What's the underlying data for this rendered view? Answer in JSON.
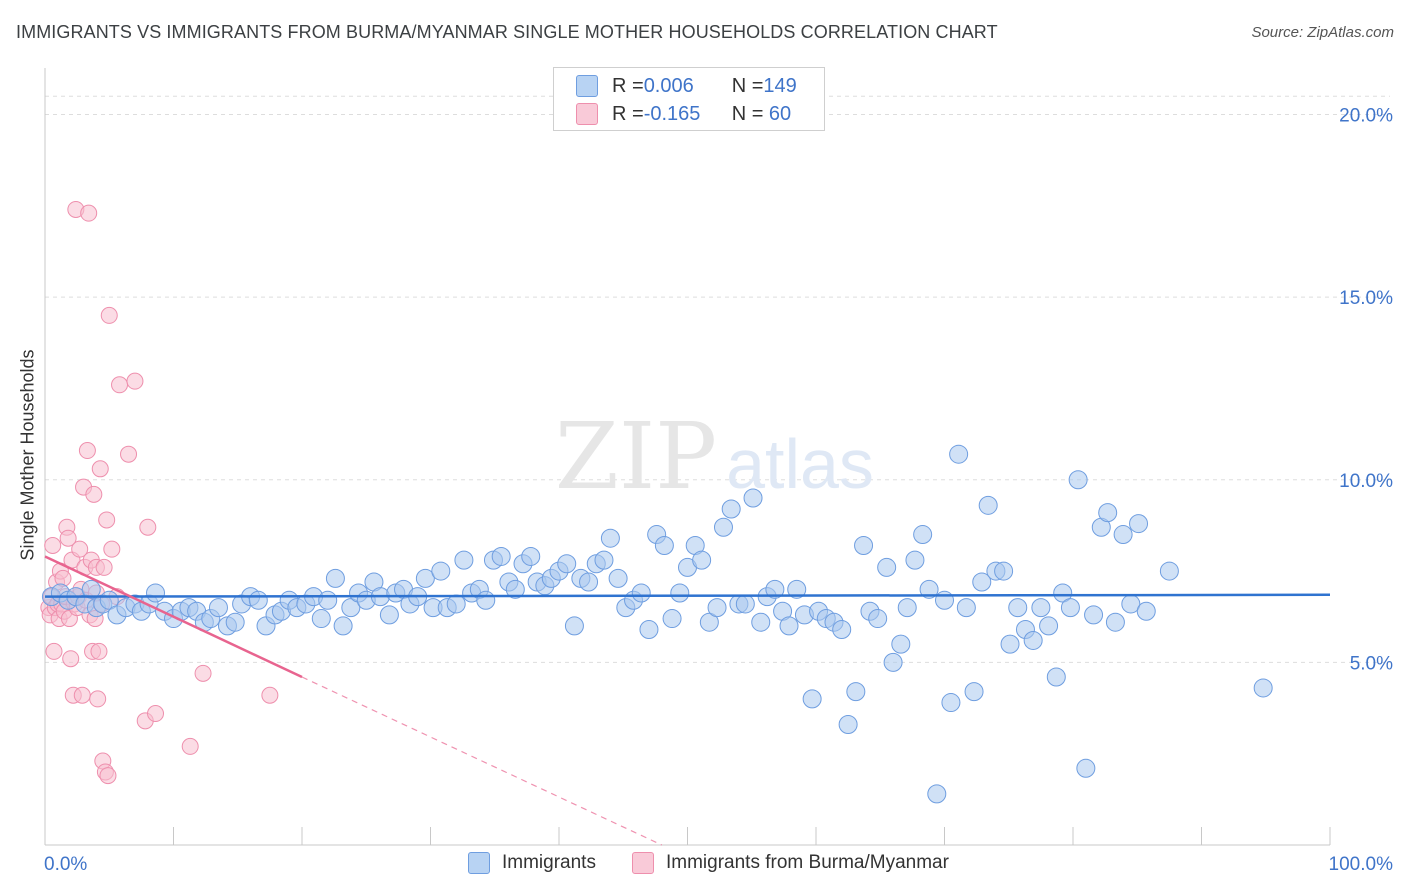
{
  "title": "IMMIGRANTS VS IMMIGRANTS FROM BURMA/MYANMAR SINGLE MOTHER HOUSEHOLDS CORRELATION CHART",
  "source": "Source: ZipAtlas.com",
  "watermark": {
    "zip": "ZIP",
    "atlas": "atlas"
  },
  "legend": {
    "rows": [
      {
        "r_label": "R = ",
        "r_value": "0.006",
        "n_label": "N = ",
        "n_value": "149"
      },
      {
        "r_label": "R = ",
        "r_value": "-0.165",
        "n_label": "N = ",
        "n_value": " 60"
      }
    ]
  },
  "bottom_legend": [
    "Immigrants",
    "Immigrants from Burma/Myanmar"
  ],
  "colors": {
    "blue_fill": "#a9c8ef",
    "blue_stroke": "#6f9ee0",
    "blue_line": "#2f73d0",
    "pink_fill": "#f7bfd0",
    "pink_stroke": "#ee8fad",
    "pink_line": "#e8648f",
    "tick_blue": "#3f74c9",
    "grid": "#dddddd"
  },
  "chart_data": {
    "type": "scatter",
    "title": "IMMIGRANTS VS IMMIGRANTS FROM BURMA/MYANMAR SINGLE MOTHER HOUSEHOLDS CORRELATION CHART",
    "xlabel": "",
    "ylabel": "Single Mother Households",
    "xlim": [
      0,
      100
    ],
    "ylim": [
      0,
      21
    ],
    "x_tick_labels": [
      "0.0%",
      "100.0%"
    ],
    "y_ticks": [
      5,
      10,
      15,
      20
    ],
    "y_tick_labels": [
      "5.0%",
      "10.0%",
      "15.0%",
      "20.0%"
    ],
    "series": [
      {
        "name": "Immigrants",
        "r": 0.006,
        "n": 149,
        "trend": {
          "x0": 0,
          "y0": 6.8,
          "x1": 100,
          "y1": 6.85
        },
        "points": [
          [
            0.5,
            6.8
          ],
          [
            1.2,
            6.9
          ],
          [
            1.8,
            6.7
          ],
          [
            2.4,
            6.8
          ],
          [
            3.1,
            6.6
          ],
          [
            3.6,
            7.0
          ],
          [
            4.0,
            6.5
          ],
          [
            4.5,
            6.6
          ],
          [
            5.0,
            6.7
          ],
          [
            5.6,
            6.3
          ],
          [
            6.3,
            6.5
          ],
          [
            7.0,
            6.6
          ],
          [
            7.5,
            6.4
          ],
          [
            8.1,
            6.6
          ],
          [
            8.6,
            6.9
          ],
          [
            9.3,
            6.4
          ],
          [
            10.0,
            6.2
          ],
          [
            10.6,
            6.4
          ],
          [
            11.2,
            6.5
          ],
          [
            11.8,
            6.4
          ],
          [
            12.4,
            6.1
          ],
          [
            12.9,
            6.2
          ],
          [
            13.5,
            6.5
          ],
          [
            14.2,
            6.0
          ],
          [
            14.8,
            6.1
          ],
          [
            15.3,
            6.6
          ],
          [
            16.0,
            6.8
          ],
          [
            16.6,
            6.7
          ],
          [
            17.2,
            6.0
          ],
          [
            17.9,
            6.3
          ],
          [
            18.4,
            6.4
          ],
          [
            19.0,
            6.7
          ],
          [
            19.6,
            6.5
          ],
          [
            20.3,
            6.6
          ],
          [
            20.9,
            6.8
          ],
          [
            21.5,
            6.2
          ],
          [
            22.0,
            6.7
          ],
          [
            22.6,
            7.3
          ],
          [
            23.2,
            6.0
          ],
          [
            23.8,
            6.5
          ],
          [
            24.4,
            6.9
          ],
          [
            25.0,
            6.7
          ],
          [
            25.6,
            7.2
          ],
          [
            26.1,
            6.8
          ],
          [
            26.8,
            6.3
          ],
          [
            27.3,
            6.9
          ],
          [
            27.9,
            7.0
          ],
          [
            28.4,
            6.6
          ],
          [
            29.0,
            6.8
          ],
          [
            29.6,
            7.3
          ],
          [
            30.2,
            6.5
          ],
          [
            30.8,
            7.5
          ],
          [
            31.3,
            6.5
          ],
          [
            32.0,
            6.6
          ],
          [
            32.6,
            7.8
          ],
          [
            33.2,
            6.9
          ],
          [
            33.8,
            7.0
          ],
          [
            34.3,
            6.7
          ],
          [
            34.9,
            7.8
          ],
          [
            35.5,
            7.9
          ],
          [
            36.1,
            7.2
          ],
          [
            36.6,
            7.0
          ],
          [
            37.2,
            7.7
          ],
          [
            37.8,
            7.9
          ],
          [
            38.3,
            7.2
          ],
          [
            38.9,
            7.1
          ],
          [
            39.4,
            7.3
          ],
          [
            40.0,
            7.5
          ],
          [
            40.6,
            7.7
          ],
          [
            41.2,
            6.0
          ],
          [
            41.7,
            7.3
          ],
          [
            42.3,
            7.2
          ],
          [
            42.9,
            7.7
          ],
          [
            43.5,
            7.8
          ],
          [
            44.0,
            8.4
          ],
          [
            44.6,
            7.3
          ],
          [
            45.2,
            6.5
          ],
          [
            45.8,
            6.7
          ],
          [
            46.4,
            6.9
          ],
          [
            47.0,
            5.9
          ],
          [
            47.6,
            8.5
          ],
          [
            48.2,
            8.2
          ],
          [
            48.8,
            6.2
          ],
          [
            49.4,
            6.9
          ],
          [
            50.0,
            7.6
          ],
          [
            50.6,
            8.2
          ],
          [
            51.1,
            7.8
          ],
          [
            51.7,
            6.1
          ],
          [
            52.3,
            6.5
          ],
          [
            52.8,
            8.7
          ],
          [
            53.4,
            9.2
          ],
          [
            54.0,
            6.6
          ],
          [
            54.5,
            6.6
          ],
          [
            55.1,
            9.5
          ],
          [
            55.7,
            6.1
          ],
          [
            56.2,
            6.8
          ],
          [
            56.8,
            7.0
          ],
          [
            57.4,
            6.4
          ],
          [
            57.9,
            6.0
          ],
          [
            58.5,
            7.0
          ],
          [
            59.1,
            6.3
          ],
          [
            59.7,
            4.0
          ],
          [
            60.2,
            6.4
          ],
          [
            60.8,
            6.2
          ],
          [
            61.4,
            6.1
          ],
          [
            62.0,
            5.9
          ],
          [
            62.5,
            3.3
          ],
          [
            63.1,
            4.2
          ],
          [
            63.7,
            8.2
          ],
          [
            64.2,
            6.4
          ],
          [
            64.8,
            6.2
          ],
          [
            65.5,
            7.6
          ],
          [
            66.0,
            5.0
          ],
          [
            66.6,
            5.5
          ],
          [
            67.1,
            6.5
          ],
          [
            67.7,
            7.8
          ],
          [
            68.3,
            8.5
          ],
          [
            68.8,
            7.0
          ],
          [
            69.4,
            1.4
          ],
          [
            70.0,
            6.7
          ],
          [
            70.5,
            3.9
          ],
          [
            71.1,
            10.7
          ],
          [
            71.7,
            6.5
          ],
          [
            72.3,
            4.2
          ],
          [
            72.9,
            7.2
          ],
          [
            73.4,
            9.3
          ],
          [
            74.0,
            7.5
          ],
          [
            74.6,
            7.5
          ],
          [
            75.1,
            5.5
          ],
          [
            75.7,
            6.5
          ],
          [
            76.3,
            5.9
          ],
          [
            76.9,
            5.6
          ],
          [
            77.5,
            6.5
          ],
          [
            78.1,
            6.0
          ],
          [
            78.7,
            4.6
          ],
          [
            79.2,
            6.9
          ],
          [
            79.8,
            6.5
          ],
          [
            80.4,
            10.0
          ],
          [
            81.0,
            2.1
          ],
          [
            81.6,
            6.3
          ],
          [
            82.2,
            8.7
          ],
          [
            82.7,
            9.1
          ],
          [
            83.3,
            6.1
          ],
          [
            83.9,
            8.5
          ],
          [
            84.5,
            6.6
          ],
          [
            85.1,
            8.8
          ],
          [
            85.7,
            6.4
          ],
          [
            87.5,
            7.5
          ],
          [
            94.8,
            4.3
          ]
        ]
      },
      {
        "name": "Immigrants from Burma/Myanmar",
        "r": -0.165,
        "n": 60,
        "trend": {
          "x0": 0,
          "y0": 7.9,
          "x1": 20,
          "y1": 4.6,
          "dash_x1": 48,
          "dash_y1": 0
        },
        "points": [
          [
            0.3,
            6.5
          ],
          [
            0.4,
            6.3
          ],
          [
            0.5,
            6.8
          ],
          [
            0.6,
            8.2
          ],
          [
            0.7,
            5.3
          ],
          [
            0.8,
            6.5
          ],
          [
            0.9,
            7.2
          ],
          [
            1.0,
            6.6
          ],
          [
            1.1,
            6.2
          ],
          [
            1.2,
            7.5
          ],
          [
            1.3,
            6.6
          ],
          [
            1.4,
            7.3
          ],
          [
            1.5,
            6.4
          ],
          [
            1.6,
            6.8
          ],
          [
            1.7,
            8.7
          ],
          [
            1.8,
            8.4
          ],
          [
            1.9,
            6.2
          ],
          [
            2.0,
            5.1
          ],
          [
            2.1,
            7.8
          ],
          [
            2.2,
            4.1
          ],
          [
            2.3,
            6.6
          ],
          [
            2.4,
            17.4
          ],
          [
            2.5,
            6.5
          ],
          [
            2.6,
            6.8
          ],
          [
            2.7,
            8.1
          ],
          [
            2.8,
            7.0
          ],
          [
            2.9,
            4.1
          ],
          [
            3.0,
            9.8
          ],
          [
            3.1,
            7.6
          ],
          [
            3.2,
            6.7
          ],
          [
            3.3,
            10.8
          ],
          [
            3.4,
            17.3
          ],
          [
            3.5,
            6.3
          ],
          [
            3.6,
            7.8
          ],
          [
            3.7,
            5.3
          ],
          [
            3.8,
            9.6
          ],
          [
            3.9,
            6.2
          ],
          [
            4.0,
            7.6
          ],
          [
            4.1,
            4.0
          ],
          [
            4.2,
            5.3
          ],
          [
            4.3,
            10.3
          ],
          [
            4.4,
            6.6
          ],
          [
            4.5,
            2.3
          ],
          [
            4.6,
            7.6
          ],
          [
            4.7,
            2.0
          ],
          [
            4.8,
            8.9
          ],
          [
            4.9,
            1.9
          ],
          [
            5.0,
            14.5
          ],
          [
            5.2,
            8.1
          ],
          [
            5.6,
            6.8
          ],
          [
            5.8,
            12.6
          ],
          [
            6.5,
            10.7
          ],
          [
            7.0,
            12.7
          ],
          [
            7.8,
            3.4
          ],
          [
            8.0,
            8.7
          ],
          [
            8.6,
            3.6
          ],
          [
            11.3,
            2.7
          ],
          [
            12.3,
            4.7
          ],
          [
            17.5,
            4.1
          ],
          [
            4.0,
            6.9
          ]
        ]
      }
    ]
  }
}
